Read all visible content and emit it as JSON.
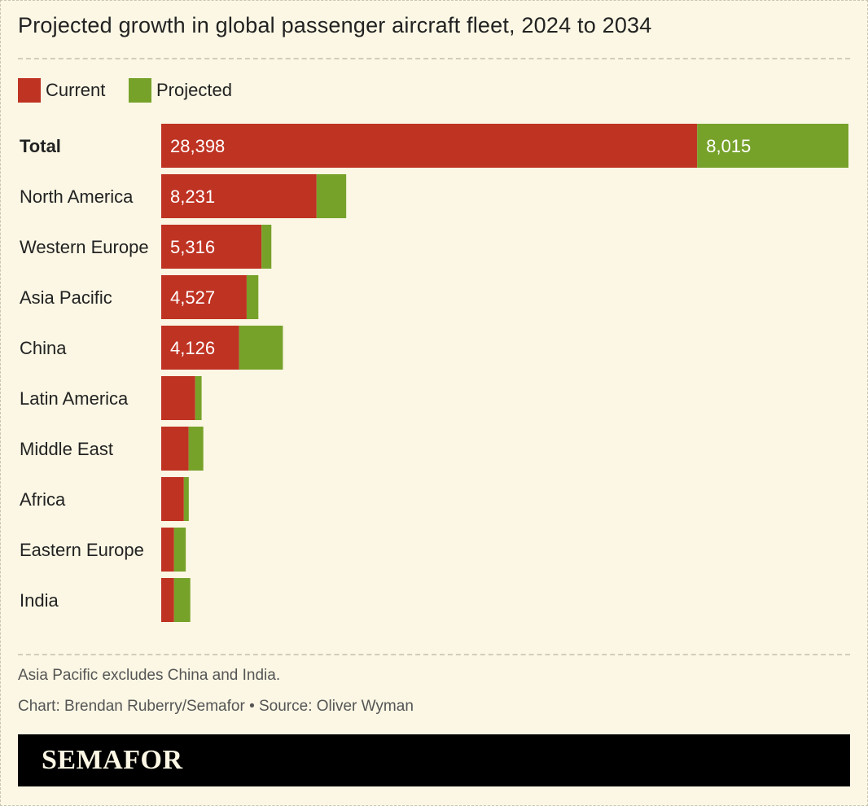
{
  "title": "Projected growth in global passenger aircraft fleet, 2024 to 2034",
  "legend": [
    {
      "label": "Current",
      "color": "#bf3323"
    },
    {
      "label": "Projected",
      "color": "#77a22a"
    }
  ],
  "footer": {
    "note": "Asia Pacific excludes China and India.",
    "credit": "Chart: Brendan Ruberry/Semafor • Source: Oliver Wyman",
    "brand": "SEMAFOR"
  },
  "chart_data": {
    "type": "bar",
    "orientation": "horizontal",
    "stacked": true,
    "title": "Projected growth in global passenger aircraft fleet, 2024 to 2034",
    "categories": [
      "Total",
      "North America",
      "Western Europe",
      "Asia Pacific",
      "China",
      "Latin America",
      "Middle East",
      "Africa",
      "Eastern Europe",
      "India"
    ],
    "series": [
      {
        "name": "Current",
        "color": "#bf3323",
        "values": [
          28398,
          8231,
          5316,
          4527,
          4126,
          1800,
          1450,
          1200,
          680,
          680
        ],
        "labels": [
          "28,398",
          "8,231",
          "5,316",
          "4,527",
          "4,126",
          "",
          "",
          "",
          "",
          ""
        ]
      },
      {
        "name": "Projected",
        "color": "#77a22a",
        "values": [
          8015,
          1570,
          520,
          620,
          2320,
          340,
          780,
          260,
          620,
          860
        ],
        "labels": [
          "8,015",
          "",
          "",
          "",
          "",
          "",
          "",
          "",
          "",
          ""
        ]
      }
    ],
    "xlim": [
      0,
      36413
    ],
    "bold_categories": [
      "Total"
    ],
    "xlabel": "",
    "ylabel": ""
  }
}
